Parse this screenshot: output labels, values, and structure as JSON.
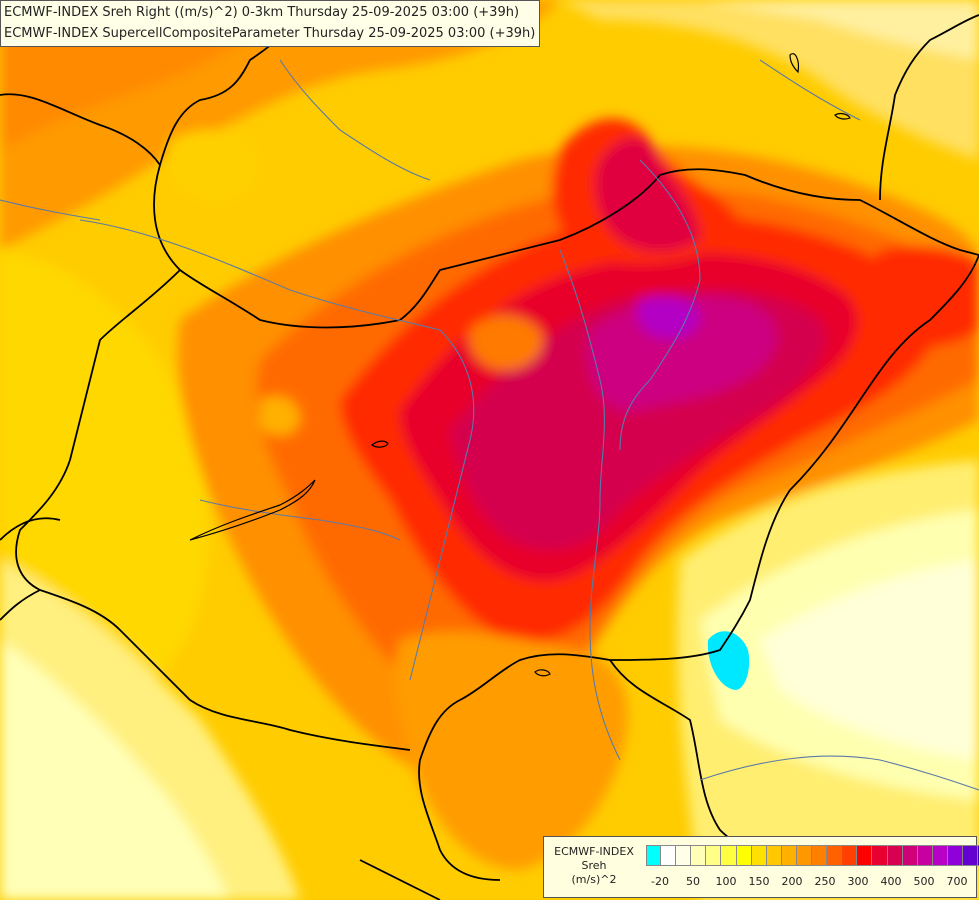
{
  "header": {
    "line1": "ECMWF-INDEX Sreh Right ((m/s)^2) 0-3km Thursday 25-09-2025 03:00 (+39h)",
    "line2": "ECMWF-INDEX SupercellCompositeParameter Thursday 25-09-2025 03:00 (+39h)"
  },
  "legend": {
    "line1": "ECMWF-INDEX",
    "line2": "Sreh",
    "line3": "(m/s)^2",
    "colors": [
      "#00ffff",
      "#ffffff",
      "#ffffe8",
      "#ffffb8",
      "#ffff88",
      "#ffff40",
      "#ffff00",
      "#ffe000",
      "#ffc800",
      "#ffb000",
      "#ff9800",
      "#ff8000",
      "#ff6000",
      "#ff4000",
      "#ff0000",
      "#e80030",
      "#d80050",
      "#d00078",
      "#c800a0",
      "#b800c8",
      "#9000d8",
      "#6400d0",
      "#3c00b8",
      "#1a0090"
    ],
    "ticks": [
      {
        "label": "-20",
        "index": 1
      },
      {
        "label": "50",
        "index": 3
      },
      {
        "label": "100",
        "index": 5
      },
      {
        "label": "150",
        "index": 7
      },
      {
        "label": "200",
        "index": 9
      },
      {
        "label": "250",
        "index": 11
      },
      {
        "label": "300",
        "index": 13
      },
      {
        "label": "400",
        "index": 15
      },
      {
        "label": "500",
        "index": 17
      },
      {
        "label": "700",
        "index": 19
      }
    ]
  }
}
